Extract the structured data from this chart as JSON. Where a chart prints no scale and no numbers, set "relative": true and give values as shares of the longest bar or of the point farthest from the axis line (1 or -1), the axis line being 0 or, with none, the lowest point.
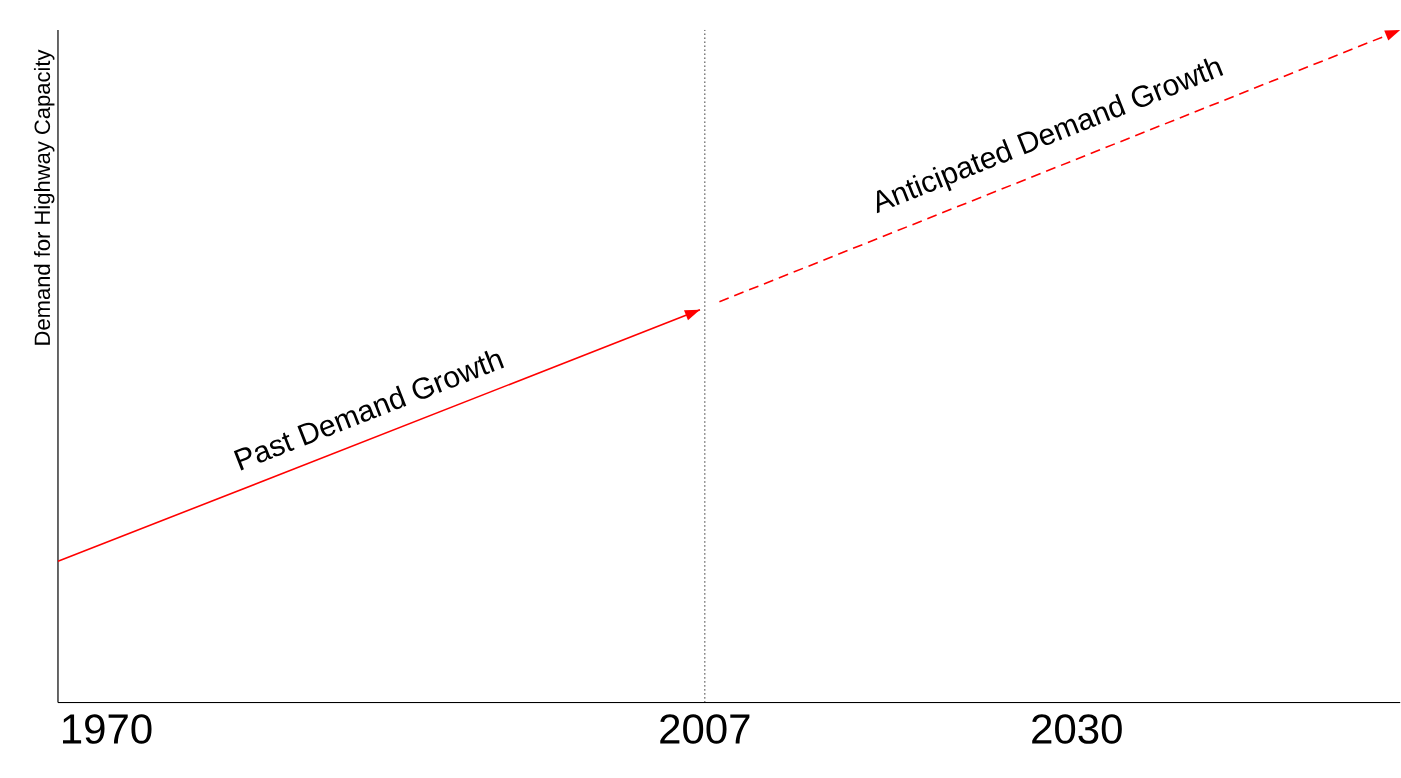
{
  "chart_data": {
    "type": "line",
    "relative": true,
    "ylabel": "Demand for Highway Capacity",
    "xlim": [
      1967,
      2050
    ],
    "xticks": [
      {
        "value": 1970,
        "label": "1970"
      },
      {
        "value": 2007,
        "label": "2007"
      },
      {
        "value": 2030,
        "label": "2030"
      }
    ],
    "tick_labels": "x",
    "grid": false,
    "series": [
      {
        "color": "#ff0000",
        "line_style": "solid",
        "x": [
          1967,
          2006.7
        ],
        "values": [
          0.21,
          0.584
        ]
      },
      {
        "color": "#ff0000",
        "line_style": "dashed",
        "x": [
          2007.9,
          2050
        ],
        "values": [
          0.596,
          1
        ]
      }
    ],
    "ref_lines": [
      {
        "axis": "x",
        "value": 2007,
        "color": "#000000",
        "line_style": "dotted"
      }
    ],
    "annotations": [
      "Past Demand Growth",
      "Anticipated Demand Growth"
    ]
  }
}
